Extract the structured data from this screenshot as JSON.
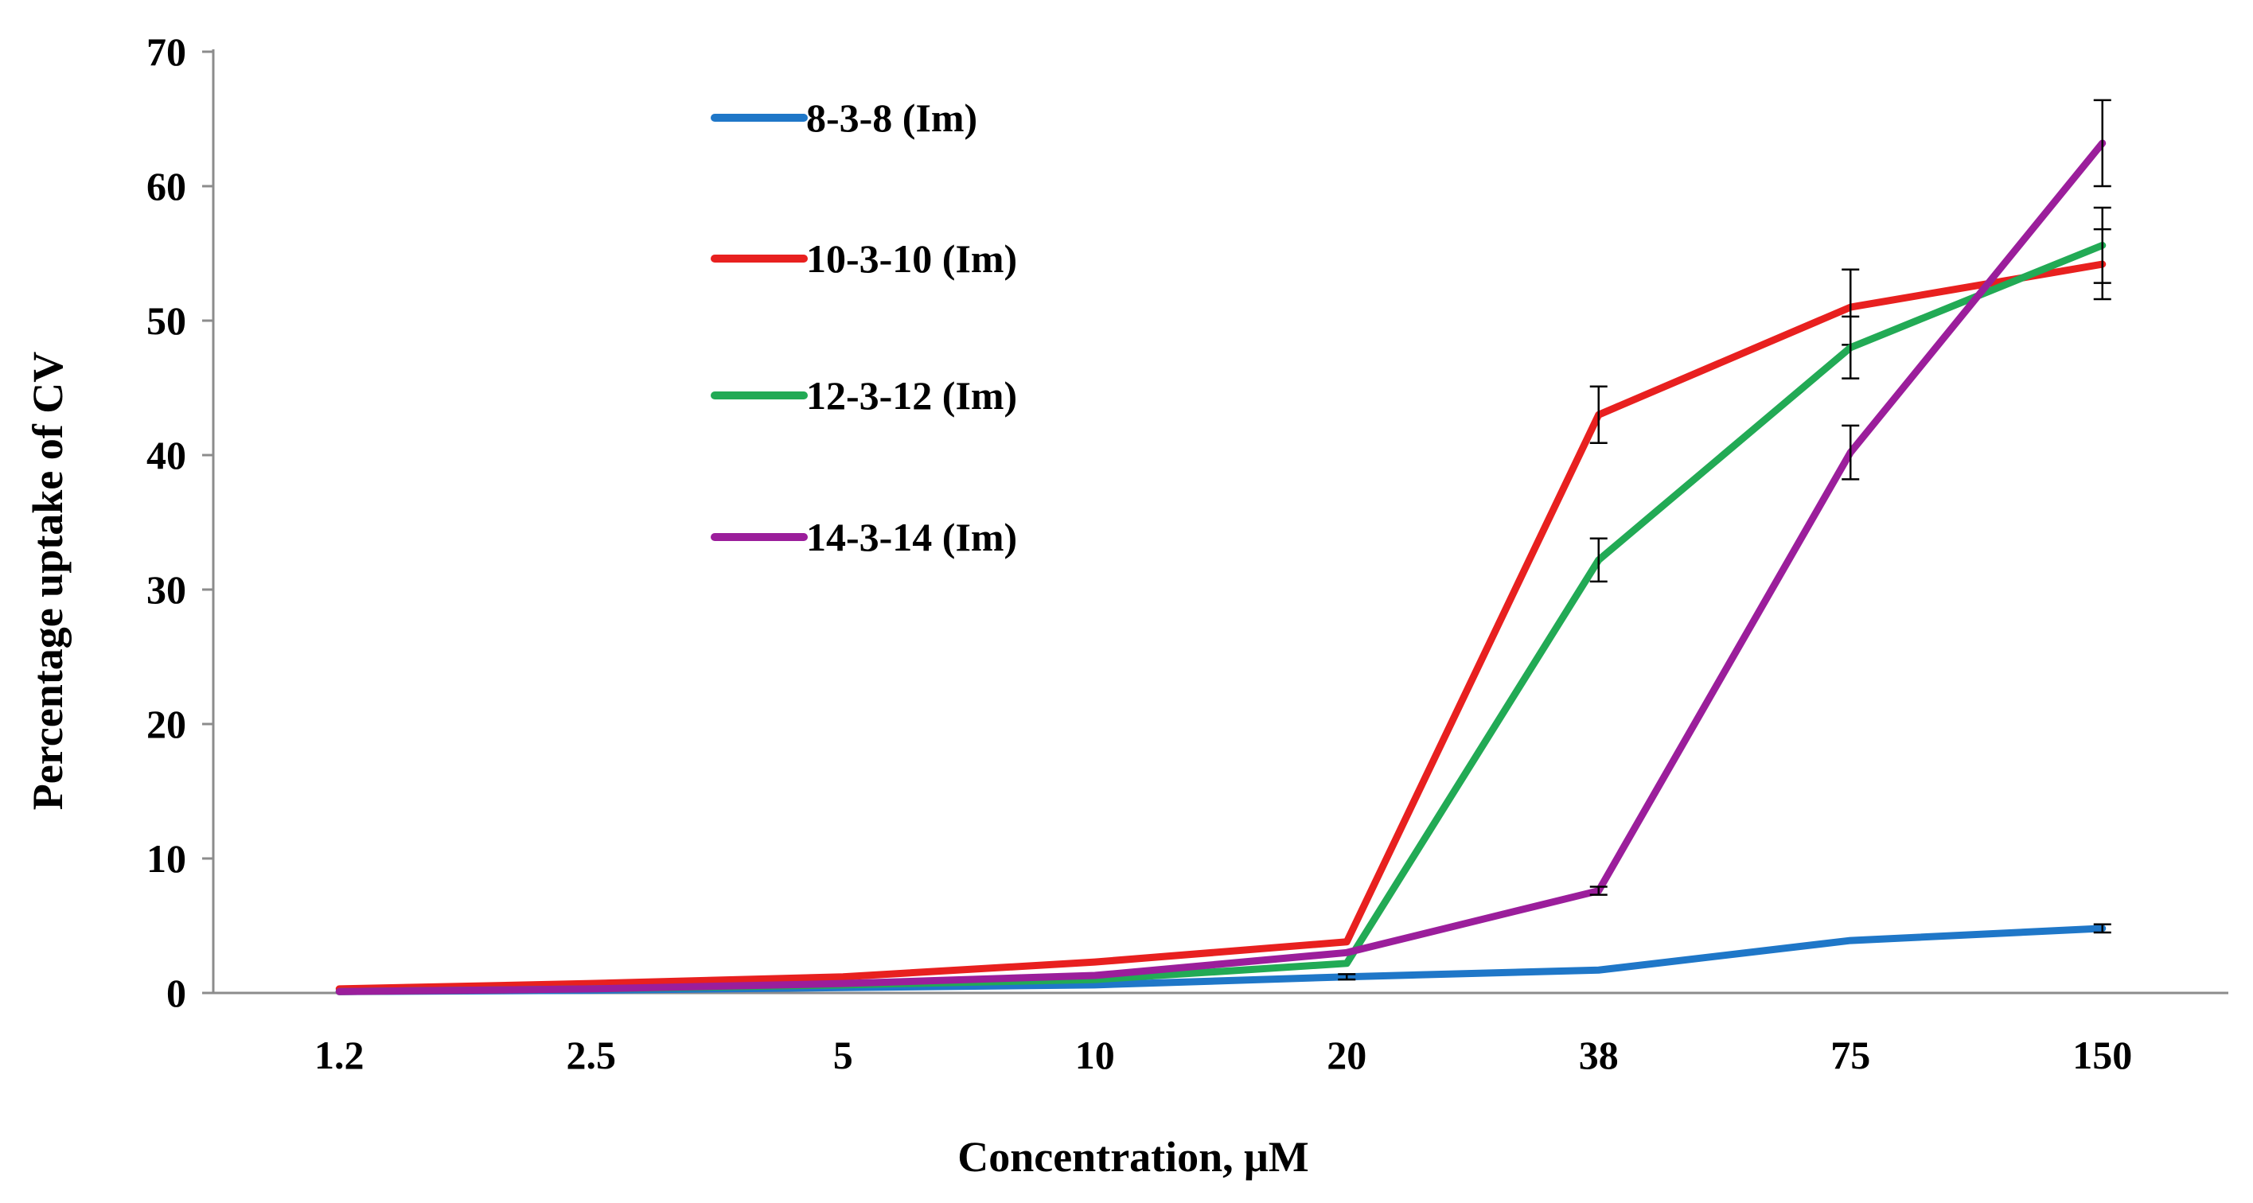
{
  "chart_data": {
    "type": "line",
    "title": "",
    "xlabel": "Concentration, μM",
    "ylabel": "Percentage uptake of CV",
    "categories": [
      "1.2",
      "2.5",
      "5",
      "10",
      "20",
      "38",
      "75",
      "150"
    ],
    "ylim": [
      0,
      70
    ],
    "yticks": [
      "0",
      "10",
      "20",
      "30",
      "40",
      "50",
      "60",
      "70"
    ],
    "grid": false,
    "legend_position": "top-left-inside",
    "series": [
      {
        "name": "8-3-8 (Im)",
        "color": "#1f77c8",
        "values": [
          0.1,
          0.2,
          0.4,
          0.6,
          1.2,
          1.7,
          3.9,
          4.8
        ],
        "errors": [
          0,
          0,
          0,
          0,
          0.2,
          0,
          0,
          0.3
        ]
      },
      {
        "name": "10-3-10 (Im)",
        "color": "#e8201f",
        "values": [
          0.3,
          0.7,
          1.2,
          2.3,
          3.8,
          43.0,
          51.0,
          54.2
        ],
        "errors": [
          0,
          0,
          0,
          0,
          0,
          2.1,
          2.8,
          2.6
        ]
      },
      {
        "name": "12-3-12 (Im)",
        "color": "#22aa55",
        "values": [
          0.1,
          0.3,
          0.6,
          1.0,
          2.2,
          32.2,
          48.0,
          55.6
        ],
        "errors": [
          0,
          0,
          0,
          0,
          0,
          1.6,
          2.3,
          2.8
        ]
      },
      {
        "name": "14-3-14 (Im)",
        "color": "#9b1e9b",
        "values": [
          0.1,
          0.3,
          0.7,
          1.3,
          3.0,
          7.6,
          40.2,
          63.2
        ],
        "errors": [
          0,
          0,
          0,
          0,
          0,
          0.3,
          2.0,
          3.2
        ]
      }
    ]
  }
}
